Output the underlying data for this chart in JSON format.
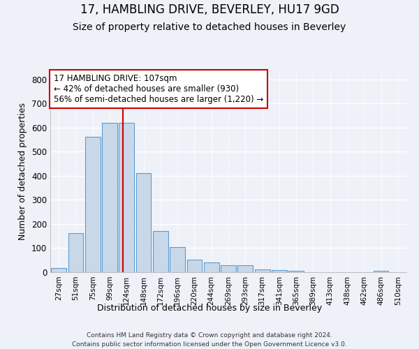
{
  "title": "17, HAMBLING DRIVE, BEVERLEY, HU17 9GD",
  "subtitle": "Size of property relative to detached houses in Beverley",
  "xlabel": "Distribution of detached houses by size in Beverley",
  "ylabel": "Number of detached properties",
  "footer_line1": "Contains HM Land Registry data © Crown copyright and database right 2024.",
  "footer_line2": "Contains public sector information licensed under the Open Government Licence v3.0.",
  "bar_labels": [
    "27sqm",
    "51sqm",
    "75sqm",
    "99sqm",
    "124sqm",
    "148sqm",
    "172sqm",
    "196sqm",
    "220sqm",
    "244sqm",
    "269sqm",
    "293sqm",
    "317sqm",
    "341sqm",
    "365sqm",
    "389sqm",
    "413sqm",
    "438sqm",
    "462sqm",
    "486sqm",
    "510sqm"
  ],
  "bar_values": [
    18,
    163,
    563,
    619,
    619,
    411,
    170,
    103,
    52,
    40,
    30,
    30,
    13,
    10,
    6,
    0,
    0,
    0,
    0,
    5,
    0
  ],
  "bar_color": "#c8d8e8",
  "bar_edge_color": "#5b9bd5",
  "annotation_line1": "17 HAMBLING DRIVE: 107sqm",
  "annotation_line2": "← 42% of detached houses are smaller (930)",
  "annotation_line3": "56% of semi-detached houses are larger (1,220) →",
  "vline_x": 3.78,
  "vline_color": "#cc0000",
  "annotation_box_color": "#cc0000",
  "ylim": [
    0,
    840
  ],
  "yticks": [
    0,
    100,
    200,
    300,
    400,
    500,
    600,
    700,
    800
  ],
  "background_color": "#eef2f8",
  "plot_bg_color": "#eef2f8",
  "grid_color": "#ffffff",
  "title_fontsize": 12,
  "subtitle_fontsize": 10,
  "bar_width": 0.9
}
